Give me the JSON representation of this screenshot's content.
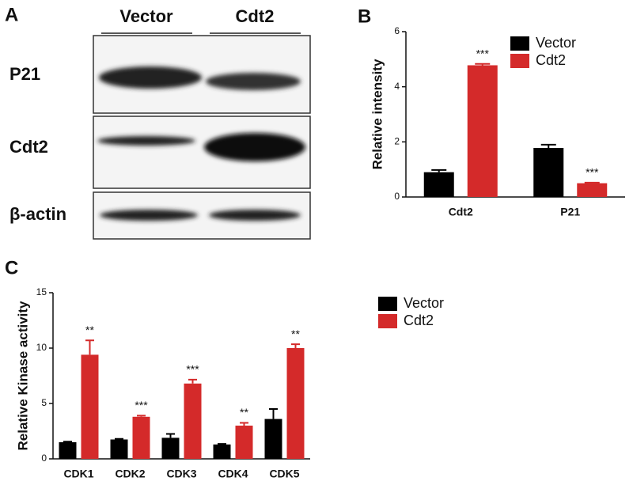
{
  "blot": {
    "panel_label": "A",
    "lanes": [
      "Vector",
      "Cdt2"
    ],
    "rows": [
      "P21",
      "Cdt2",
      "β-actin"
    ]
  },
  "chart_data": [
    {
      "type": "bar",
      "panel_label": "B",
      "ylabel": "Relative intensity",
      "categories": [
        "Cdt2",
        "P21"
      ],
      "series": [
        {
          "name": "Vector",
          "color": "#000000",
          "values": [
            0.9,
            1.78
          ],
          "errors": [
            0.08,
            0.12
          ]
        },
        {
          "name": "Cdt2",
          "color": "#d42a2a",
          "values": [
            4.78,
            0.5
          ],
          "errors": [
            0.05,
            0.02
          ],
          "significance": [
            "***",
            "***"
          ]
        }
      ],
      "ylim": [
        0,
        6
      ],
      "yticks": [
        0,
        2,
        4,
        6
      ],
      "legend": "upper right"
    },
    {
      "type": "bar",
      "panel_label": "C",
      "ylabel": "Relative Kinase activity",
      "categories": [
        "CDK1",
        "CDK2",
        "CDK3",
        "CDK4",
        "CDK5"
      ],
      "series": [
        {
          "name": "Vector",
          "color": "#000000",
          "values": [
            1.5,
            1.75,
            1.9,
            1.3,
            3.6
          ],
          "errors": [
            0.05,
            0.05,
            0.35,
            0.05,
            0.9
          ]
        },
        {
          "name": "Cdt2",
          "color": "#d42a2a",
          "values": [
            9.4,
            3.8,
            6.8,
            3.0,
            10.0
          ],
          "errors": [
            1.3,
            0.1,
            0.35,
            0.25,
            0.35
          ],
          "significance": [
            "**",
            "***",
            "***",
            "**",
            "**"
          ]
        }
      ],
      "ylim": [
        0,
        15
      ],
      "yticks": [
        0,
        5,
        10,
        15
      ],
      "legend": "right"
    }
  ]
}
